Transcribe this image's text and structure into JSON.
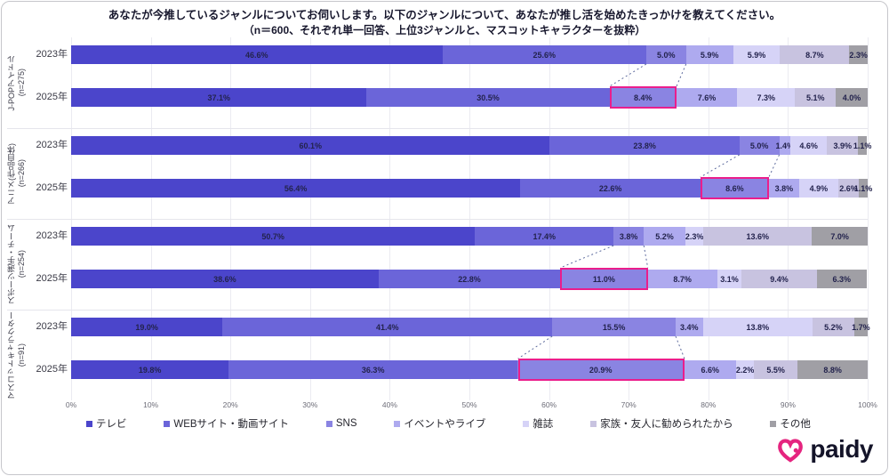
{
  "header": {
    "title": "あなたが今推しているジャンルについてお伺いします。以下のジャンルについて、あなたが推し活を始めたきっかけを教えてください。",
    "subtitle": "（n＝600、それぞれ単一回答、上位3ジャンルと、マスコットキャラクターを抜粋）"
  },
  "chart_data": {
    "type": "bar",
    "orientation": "horizontal-stacked",
    "unit": "%",
    "xlim": [
      0,
      100
    ],
    "x_ticks": [
      "0%",
      "10%",
      "20%",
      "30%",
      "40%",
      "50%",
      "60%",
      "70%",
      "80%",
      "90%",
      "100%"
    ],
    "grid": true,
    "legend_position": "bottom",
    "series": [
      {
        "name": "テレビ",
        "color": "#4b45cb"
      },
      {
        "name": "WEBサイト・動画サイト",
        "color": "#6b65d9"
      },
      {
        "name": "SNS",
        "color": "#8a84e2"
      },
      {
        "name": "イベントやライブ",
        "color": "#aeaaef"
      },
      {
        "name": "雑誌",
        "color": "#d6d3f7"
      },
      {
        "name": "家族・友人に勧められたから",
        "color": "#c8c3e0"
      },
      {
        "name": "その他",
        "color": "#a09fa5"
      }
    ],
    "highlight": {
      "series": "SNS",
      "applies_to_year": "2025年",
      "color": "#ea1e8c",
      "connector_color": "#41518c"
    },
    "groups": [
      {
        "label": "J-POPアイドル",
        "n_label": "(n=275)",
        "rows": [
          {
            "year": "2023年",
            "values": [
              46.6,
              25.6,
              5.0,
              5.9,
              5.9,
              8.7,
              2.3
            ]
          },
          {
            "year": "2025年",
            "values": [
              37.1,
              30.5,
              8.4,
              7.6,
              7.3,
              5.1,
              4.0
            ],
            "highlight_index": 2
          }
        ]
      },
      {
        "label": "アニメ(作品自体)",
        "n_label": "(n=266)",
        "rows": [
          {
            "year": "2023年",
            "values": [
              60.1,
              23.8,
              5.0,
              1.4,
              4.6,
              3.9,
              1.1
            ]
          },
          {
            "year": "2025年",
            "values": [
              56.4,
              22.6,
              8.6,
              3.8,
              4.9,
              2.6,
              1.1
            ],
            "highlight_index": 2
          }
        ]
      },
      {
        "label": "スポーツ選手・チーム",
        "n_label": "(n=254)",
        "rows": [
          {
            "year": "2023年",
            "values": [
              50.7,
              17.4,
              3.8,
              5.2,
              2.3,
              13.6,
              7.0
            ]
          },
          {
            "year": "2025年",
            "values": [
              38.6,
              22.8,
              11.0,
              8.7,
              3.1,
              9.4,
              6.3
            ],
            "highlight_index": 2
          }
        ]
      },
      {
        "label": "マスコットキャラクター",
        "n_label": "(n=91)",
        "rows": [
          {
            "year": "2023年",
            "values": [
              19.0,
              41.4,
              15.5,
              3.4,
              13.8,
              5.2,
              1.7
            ]
          },
          {
            "year": "2025年",
            "values": [
              19.8,
              36.3,
              20.9,
              6.6,
              2.2,
              5.5,
              8.8
            ],
            "highlight_index": 2
          }
        ]
      }
    ]
  },
  "logo": {
    "text": "paidy",
    "brand_color": "#e5247f"
  }
}
